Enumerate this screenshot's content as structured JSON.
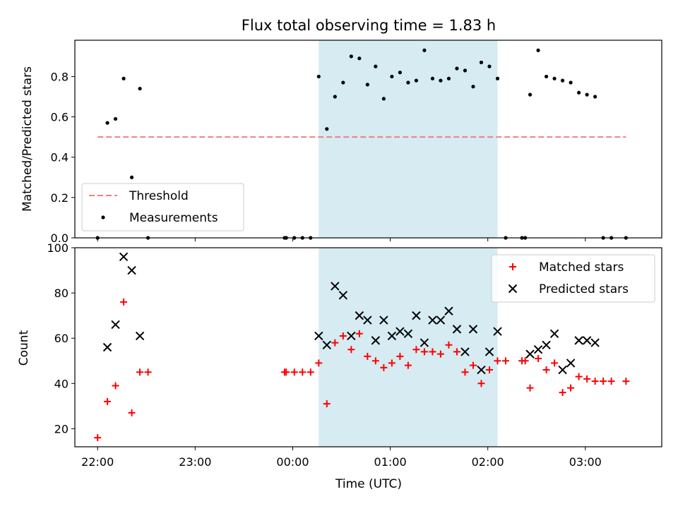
{
  "chart_data": [
    {
      "type": "scatter",
      "title": "Flux total observing time = 1.83 h",
      "ylabel": "Matched/Predicted stars",
      "xlabel": "",
      "ylim": [
        0,
        0.98
      ],
      "xlim": [
        "21:46",
        "03:47"
      ],
      "yticks": [
        "0.0",
        "0.2",
        "0.4",
        "0.6",
        "0.8"
      ],
      "y_tick_values": [
        0,
        0.2,
        0.4,
        0.6,
        0.8
      ],
      "shaded_span": [
        "00:16",
        "02:06"
      ],
      "shaded_color": "#add8e6",
      "legend_position": "lower-left",
      "series": [
        {
          "name": "Threshold",
          "style": "dashed-line",
          "color": "#f08080",
          "points": [
            [
              "22:00",
              0.5
            ],
            [
              "03:25",
              0.5
            ]
          ]
        },
        {
          "name": "Measurements",
          "style": "dot",
          "color": "#000000",
          "points": [
            [
              "22:00",
              0.0
            ],
            [
              "22:06",
              0.57
            ],
            [
              "22:11",
              0.59
            ],
            [
              "22:16",
              0.79
            ],
            [
              "22:21",
              0.3
            ],
            [
              "22:26",
              0.74
            ],
            [
              "22:31",
              0.0
            ],
            [
              "23:55",
              0.0
            ],
            [
              "23:56",
              0.0
            ],
            [
              "00:01",
              0.0
            ],
            [
              "00:06",
              0.0
            ],
            [
              "00:11",
              0.0
            ],
            [
              "00:16",
              0.8
            ],
            [
              "00:21",
              0.54
            ],
            [
              "00:26",
              0.7
            ],
            [
              "00:31",
              0.77
            ],
            [
              "00:36",
              0.9
            ],
            [
              "00:41",
              0.89
            ],
            [
              "00:46",
              0.76
            ],
            [
              "00:51",
              0.85
            ],
            [
              "00:56",
              0.69
            ],
            [
              "01:01",
              0.8
            ],
            [
              "01:06",
              0.82
            ],
            [
              "01:11",
              0.77
            ],
            [
              "01:16",
              0.78
            ],
            [
              "01:21",
              0.93
            ],
            [
              "01:26",
              0.79
            ],
            [
              "01:31",
              0.78
            ],
            [
              "01:36",
              0.79
            ],
            [
              "01:41",
              0.84
            ],
            [
              "01:46",
              0.83
            ],
            [
              "01:51",
              0.75
            ],
            [
              "01:56",
              0.87
            ],
            [
              "02:01",
              0.85
            ],
            [
              "02:06",
              0.79
            ],
            [
              "02:11",
              0.0
            ],
            [
              "02:21",
              0.0
            ],
            [
              "02:23",
              0.0
            ],
            [
              "02:26",
              0.71
            ],
            [
              "02:31",
              0.93
            ],
            [
              "02:36",
              0.8
            ],
            [
              "02:41",
              0.79
            ],
            [
              "02:46",
              0.78
            ],
            [
              "02:51",
              0.77
            ],
            [
              "02:56",
              0.72
            ],
            [
              "03:01",
              0.71
            ],
            [
              "03:06",
              0.7
            ],
            [
              "03:11",
              0.0
            ],
            [
              "03:16",
              0.0
            ],
            [
              "03:25",
              0.0
            ]
          ]
        }
      ]
    },
    {
      "type": "scatter",
      "title": "",
      "ylabel": "Count",
      "xlabel": "Time (UTC)",
      "ylim": [
        12,
        100
      ],
      "xlim": [
        "21:46",
        "03:47"
      ],
      "yticks": [
        "20",
        "40",
        "60",
        "80",
        "100"
      ],
      "y_tick_values": [
        20,
        40,
        60,
        80,
        100
      ],
      "xticks": [
        "22:00",
        "23:00",
        "00:00",
        "01:00",
        "02:00",
        "03:00"
      ],
      "shaded_span": [
        "00:16",
        "02:06"
      ],
      "shaded_color": "#add8e6",
      "legend_position": "top-right",
      "series": [
        {
          "name": "Matched stars",
          "style": "plus",
          "color": "#ff0000",
          "points": [
            [
              "22:00",
              16
            ],
            [
              "22:06",
              32
            ],
            [
              "22:11",
              39
            ],
            [
              "22:16",
              76
            ],
            [
              "22:21",
              27
            ],
            [
              "22:26",
              45
            ],
            [
              "22:31",
              45
            ],
            [
              "23:55",
              45
            ],
            [
              "23:56",
              45
            ],
            [
              "00:01",
              45
            ],
            [
              "00:06",
              45
            ],
            [
              "00:11",
              45
            ],
            [
              "00:16",
              49
            ],
            [
              "00:21",
              31
            ],
            [
              "00:26",
              58
            ],
            [
              "00:31",
              61
            ],
            [
              "00:36",
              55
            ],
            [
              "00:41",
              62
            ],
            [
              "00:46",
              52
            ],
            [
              "00:51",
              50
            ],
            [
              "00:56",
              47
            ],
            [
              "01:01",
              49
            ],
            [
              "01:06",
              52
            ],
            [
              "01:11",
              48
            ],
            [
              "01:16",
              55
            ],
            [
              "01:21",
              54
            ],
            [
              "01:26",
              54
            ],
            [
              "01:31",
              53
            ],
            [
              "01:36",
              57
            ],
            [
              "01:41",
              54
            ],
            [
              "01:46",
              45
            ],
            [
              "01:51",
              48
            ],
            [
              "01:56",
              40
            ],
            [
              "02:01",
              46
            ],
            [
              "02:06",
              50
            ],
            [
              "02:11",
              50
            ],
            [
              "02:21",
              50
            ],
            [
              "02:23",
              50
            ],
            [
              "02:26",
              38
            ],
            [
              "02:31",
              51
            ],
            [
              "02:36",
              46
            ],
            [
              "02:41",
              49
            ],
            [
              "02:46",
              36
            ],
            [
              "02:51",
              38
            ],
            [
              "02:56",
              43
            ],
            [
              "03:01",
              42
            ],
            [
              "03:06",
              41
            ],
            [
              "03:11",
              41
            ],
            [
              "03:16",
              41
            ],
            [
              "03:25",
              41
            ]
          ]
        },
        {
          "name": "Predicted stars",
          "style": "x",
          "color": "#000000",
          "points": [
            [
              "22:06",
              56
            ],
            [
              "22:11",
              66
            ],
            [
              "22:16",
              96
            ],
            [
              "22:21",
              90
            ],
            [
              "22:26",
              61
            ],
            [
              "00:16",
              61
            ],
            [
              "00:21",
              57
            ],
            [
              "00:26",
              83
            ],
            [
              "00:31",
              79
            ],
            [
              "00:36",
              61
            ],
            [
              "00:41",
              70
            ],
            [
              "00:46",
              68
            ],
            [
              "00:51",
              59
            ],
            [
              "00:56",
              68
            ],
            [
              "01:01",
              61
            ],
            [
              "01:06",
              63
            ],
            [
              "01:11",
              62
            ],
            [
              "01:16",
              70
            ],
            [
              "01:21",
              58
            ],
            [
              "01:26",
              68
            ],
            [
              "01:31",
              68
            ],
            [
              "01:36",
              72
            ],
            [
              "01:41",
              64
            ],
            [
              "01:46",
              54
            ],
            [
              "01:51",
              64
            ],
            [
              "01:56",
              46
            ],
            [
              "02:01",
              54
            ],
            [
              "02:06",
              63
            ],
            [
              "02:26",
              53
            ],
            [
              "02:31",
              55
            ],
            [
              "02:36",
              57
            ],
            [
              "02:41",
              62
            ],
            [
              "02:46",
              46
            ],
            [
              "02:51",
              49
            ],
            [
              "02:56",
              59
            ],
            [
              "03:01",
              59
            ],
            [
              "03:06",
              58
            ]
          ]
        }
      ]
    }
  ]
}
